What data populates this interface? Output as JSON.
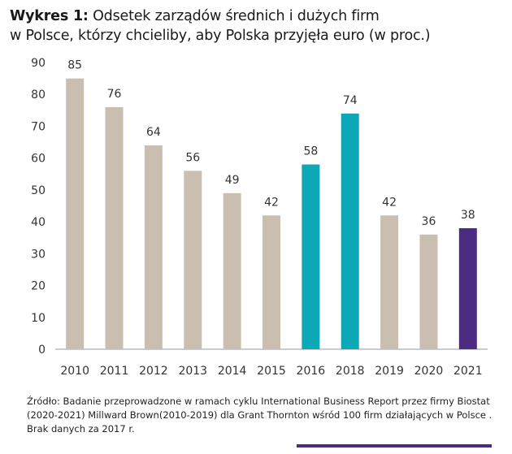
{
  "title": {
    "prefix": "Wykres 1:",
    "line1": "Odsetek zarządów średnich i dużych firm",
    "line2": "w Polsce, którzy chcieliby, aby Polska przyjęła euro (w proc.)"
  },
  "chart_data": {
    "type": "bar",
    "title": "Wykres 1: Odsetek zarządów średnich i dużych firm w Polsce, którzy chcieliby, aby Polska przyjęła euro (w proc.)",
    "categories": [
      "2010",
      "2011",
      "2012",
      "2013",
      "2014",
      "2015",
      "2016",
      "2018",
      "2019",
      "2020",
      "2021"
    ],
    "values": [
      85,
      76,
      64,
      56,
      49,
      42,
      58,
      74,
      42,
      36,
      38
    ],
    "colors": [
      "#c9beb0",
      "#c9beb0",
      "#c9beb0",
      "#c9beb0",
      "#c9beb0",
      "#c9beb0",
      "#0ca8b5",
      "#0ca8b5",
      "#c9beb0",
      "#c9beb0",
      "#4b2c82"
    ],
    "ylim": [
      0,
      90
    ],
    "yticks": [
      0,
      10,
      20,
      30,
      40,
      50,
      60,
      70,
      80,
      90
    ],
    "grid": false,
    "xlabel": "",
    "ylabel": ""
  },
  "source": "Źródło: Badanie przeprowadzone w ramach cyklu International Business Report przez firmy Biostat (2020-2021) Millward Brown(2010-2019) dla Grant Thornton wśród 100 firm działających w Polsce . Brak danych za 2017 r.",
  "colors": {
    "accent": "#4b2c82"
  }
}
